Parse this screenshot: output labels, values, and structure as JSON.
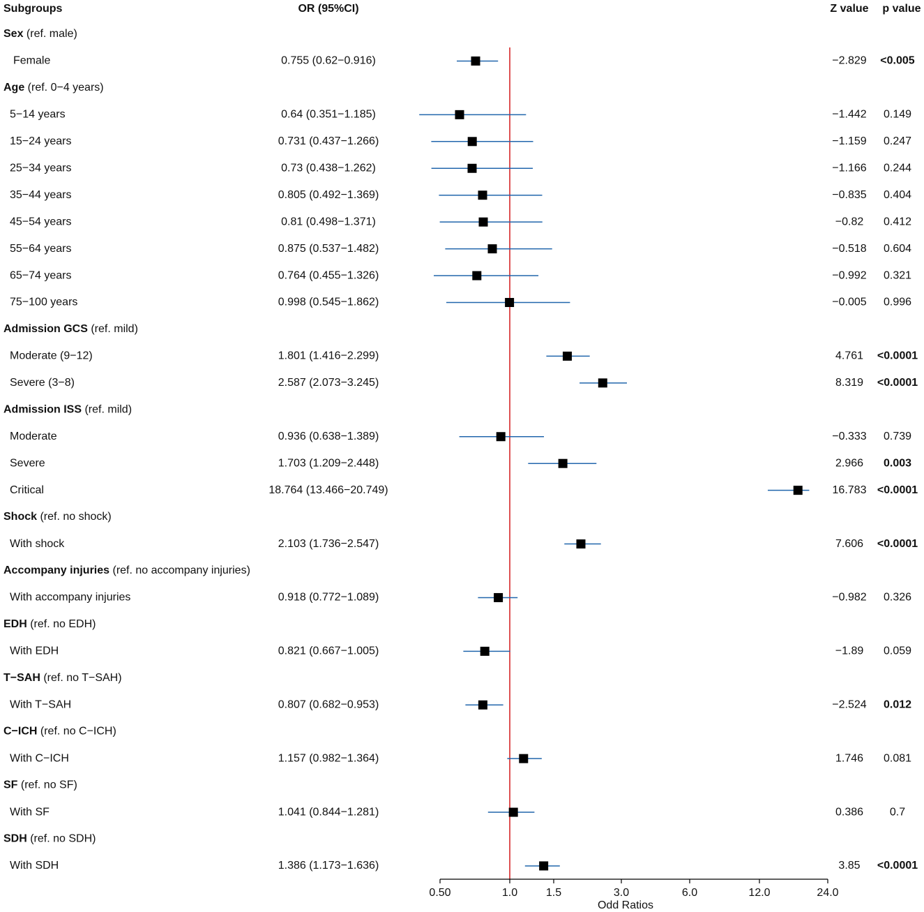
{
  "chart_data": {
    "type": "forest",
    "columns": {
      "subgroups": "Subgroups",
      "or": "OR (95%CI)",
      "z": "Z value",
      "p": "p value"
    },
    "xlabel": "Odd Ratios",
    "reference_value": 1.0,
    "x_ticks": [
      {
        "value": 0.5,
        "label": "0.50"
      },
      {
        "value": 1.0,
        "label": "1.0"
      },
      {
        "value": 1.5,
        "label": "1.5"
      },
      {
        "value": 3.0,
        "label": "3.0"
      },
      {
        "value": 6.0,
        "label": "6.0"
      },
      {
        "value": 12.0,
        "label": "12.0"
      },
      {
        "value": 24.0,
        "label": "24.0"
      }
    ],
    "rows": [
      {
        "type": "header",
        "label": "Sex",
        "ref": "(ref. male)"
      },
      {
        "type": "data",
        "label": "Female",
        "or_text": "0.755 (0.62−0.916)",
        "or": 0.755,
        "lo": 0.62,
        "hi": 0.916,
        "z": "−2.829",
        "p": "<0.005",
        "sig": true
      },
      {
        "type": "header",
        "label": "Age",
        "ref": "(ref. 0−4 years)"
      },
      {
        "type": "data",
        "label": "5−14 years",
        "or_text": "0.64 (0.351−1.185)",
        "or": 0.64,
        "lo": 0.351,
        "hi": 1.185,
        "z": "−1.442",
        "p": "0.149",
        "sig": false
      },
      {
        "type": "data",
        "label": "15−24 years",
        "or_text": "0.731 (0.437−1.266)",
        "or": 0.731,
        "lo": 0.437,
        "hi": 1.266,
        "z": "−1.159",
        "p": "0.247",
        "sig": false
      },
      {
        "type": "data",
        "label": "25−34 years",
        "or_text": "0.73 (0.438−1.262)",
        "or": 0.73,
        "lo": 0.438,
        "hi": 1.262,
        "z": "−1.166",
        "p": "0.244",
        "sig": false
      },
      {
        "type": "data",
        "label": "35−44 years",
        "or_text": "0.805 (0.492−1.369)",
        "or": 0.805,
        "lo": 0.492,
        "hi": 1.369,
        "z": "−0.835",
        "p": "0.404",
        "sig": false
      },
      {
        "type": "data",
        "label": "45−54 years",
        "or_text": "0.81 (0.498−1.371)",
        "or": 0.81,
        "lo": 0.498,
        "hi": 1.371,
        "z": "−0.82",
        "p": "0.412",
        "sig": false
      },
      {
        "type": "data",
        "label": "55−64 years",
        "or_text": "0.875 (0.537−1.482)",
        "or": 0.875,
        "lo": 0.537,
        "hi": 1.482,
        "z": "−0.518",
        "p": "0.604",
        "sig": false
      },
      {
        "type": "data",
        "label": "65−74 years",
        "or_text": "0.764 (0.455−1.326)",
        "or": 0.764,
        "lo": 0.455,
        "hi": 1.326,
        "z": "−0.992",
        "p": "0.321",
        "sig": false
      },
      {
        "type": "data",
        "label": "75−100 years",
        "or_text": "0.998 (0.545−1.862)",
        "or": 0.998,
        "lo": 0.545,
        "hi": 1.862,
        "z": "−0.005",
        "p": "0.996",
        "sig": false
      },
      {
        "type": "header",
        "label": "Admission GCS",
        "ref": "(ref. mild)"
      },
      {
        "type": "data",
        "label": "Moderate (9−12)",
        "or_text": "1.801 (1.416−2.299)",
        "or": 1.801,
        "lo": 1.416,
        "hi": 2.299,
        "z": "4.761",
        "p": "<0.0001",
        "sig": true
      },
      {
        "type": "data",
        "label": "Severe (3−8)",
        "or_text": "2.587 (2.073−3.245)",
        "or": 2.587,
        "lo": 2.073,
        "hi": 3.245,
        "z": "8.319",
        "p": "<0.0001",
        "sig": true
      },
      {
        "type": "header",
        "label": "Admission ISS",
        "ref": "(ref. mild)"
      },
      {
        "type": "data",
        "label": "Moderate",
        "or_text": "0.936 (0.638−1.389)",
        "or": 0.936,
        "lo": 0.638,
        "hi": 1.389,
        "z": "−0.333",
        "p": "0.739",
        "sig": false
      },
      {
        "type": "data",
        "label": "Severe",
        "or_text": "1.703 (1.209−2.448)",
        "or": 1.703,
        "lo": 1.209,
        "hi": 2.448,
        "z": "2.966",
        "p": "0.003",
        "sig": true
      },
      {
        "type": "data",
        "label": "Critical",
        "or_text": "18.764 (13.466−20.749)",
        "or": 18.764,
        "lo": 13.466,
        "hi": 20.749,
        "z": "16.783",
        "p": "<0.0001",
        "sig": true
      },
      {
        "type": "header",
        "label": "Shock",
        "ref": "(ref. no shock)"
      },
      {
        "type": "data",
        "label": "With shock",
        "or_text": "2.103 (1.736−2.547)",
        "or": 2.103,
        "lo": 1.736,
        "hi": 2.547,
        "z": "7.606",
        "p": "<0.0001",
        "sig": true
      },
      {
        "type": "header",
        "label": "Accompany injuries",
        "ref": "(ref. no accompany injuries)"
      },
      {
        "type": "data",
        "label": "With accompany injuries",
        "or_text": "0.918 (0.772−1.089)",
        "or": 0.918,
        "lo": 0.772,
        "hi": 1.089,
        "z": "−0.982",
        "p": "0.326",
        "sig": false
      },
      {
        "type": "header",
        "label": "EDH",
        "ref": "(ref. no EDH)"
      },
      {
        "type": "data",
        "label": "With EDH",
        "or_text": "0.821 (0.667−1.005)",
        "or": 0.821,
        "lo": 0.667,
        "hi": 1.005,
        "z": "−1.89",
        "p": "0.059",
        "sig": false
      },
      {
        "type": "header",
        "label": "T−SAH",
        "ref": "(ref. no T−SAH)"
      },
      {
        "type": "data",
        "label": "With T−SAH",
        "or_text": "0.807 (0.682−0.953)",
        "or": 0.807,
        "lo": 0.682,
        "hi": 0.953,
        "z": "−2.524",
        "p": "0.012",
        "sig": true
      },
      {
        "type": "header",
        "label": "C−ICH",
        "ref": "(ref. no C−ICH)"
      },
      {
        "type": "data",
        "label": "With C−ICH",
        "or_text": "1.157 (0.982−1.364)",
        "or": 1.157,
        "lo": 0.982,
        "hi": 1.364,
        "z": "1.746",
        "p": "0.081",
        "sig": false
      },
      {
        "type": "header",
        "label": "SF",
        "ref": "(ref. no SF)"
      },
      {
        "type": "data",
        "label": "With SF",
        "or_text": "1.041 (0.844−1.281)",
        "or": 1.041,
        "lo": 0.844,
        "hi": 1.281,
        "z": "0.386",
        "p": "0.7",
        "sig": false
      },
      {
        "type": "header",
        "label": "SDH",
        "ref": "(ref. no SDH)"
      },
      {
        "type": "data",
        "label": "With SDH",
        "or_text": "1.386 (1.173−1.636)",
        "or": 1.386,
        "lo": 1.173,
        "hi": 1.636,
        "z": "3.85",
        "p": "<0.0001",
        "sig": true
      }
    ],
    "colors": {
      "ci_line": "#2166ac",
      "marker": "#000000",
      "reference_line": "#d62728",
      "text": "#111111"
    }
  }
}
